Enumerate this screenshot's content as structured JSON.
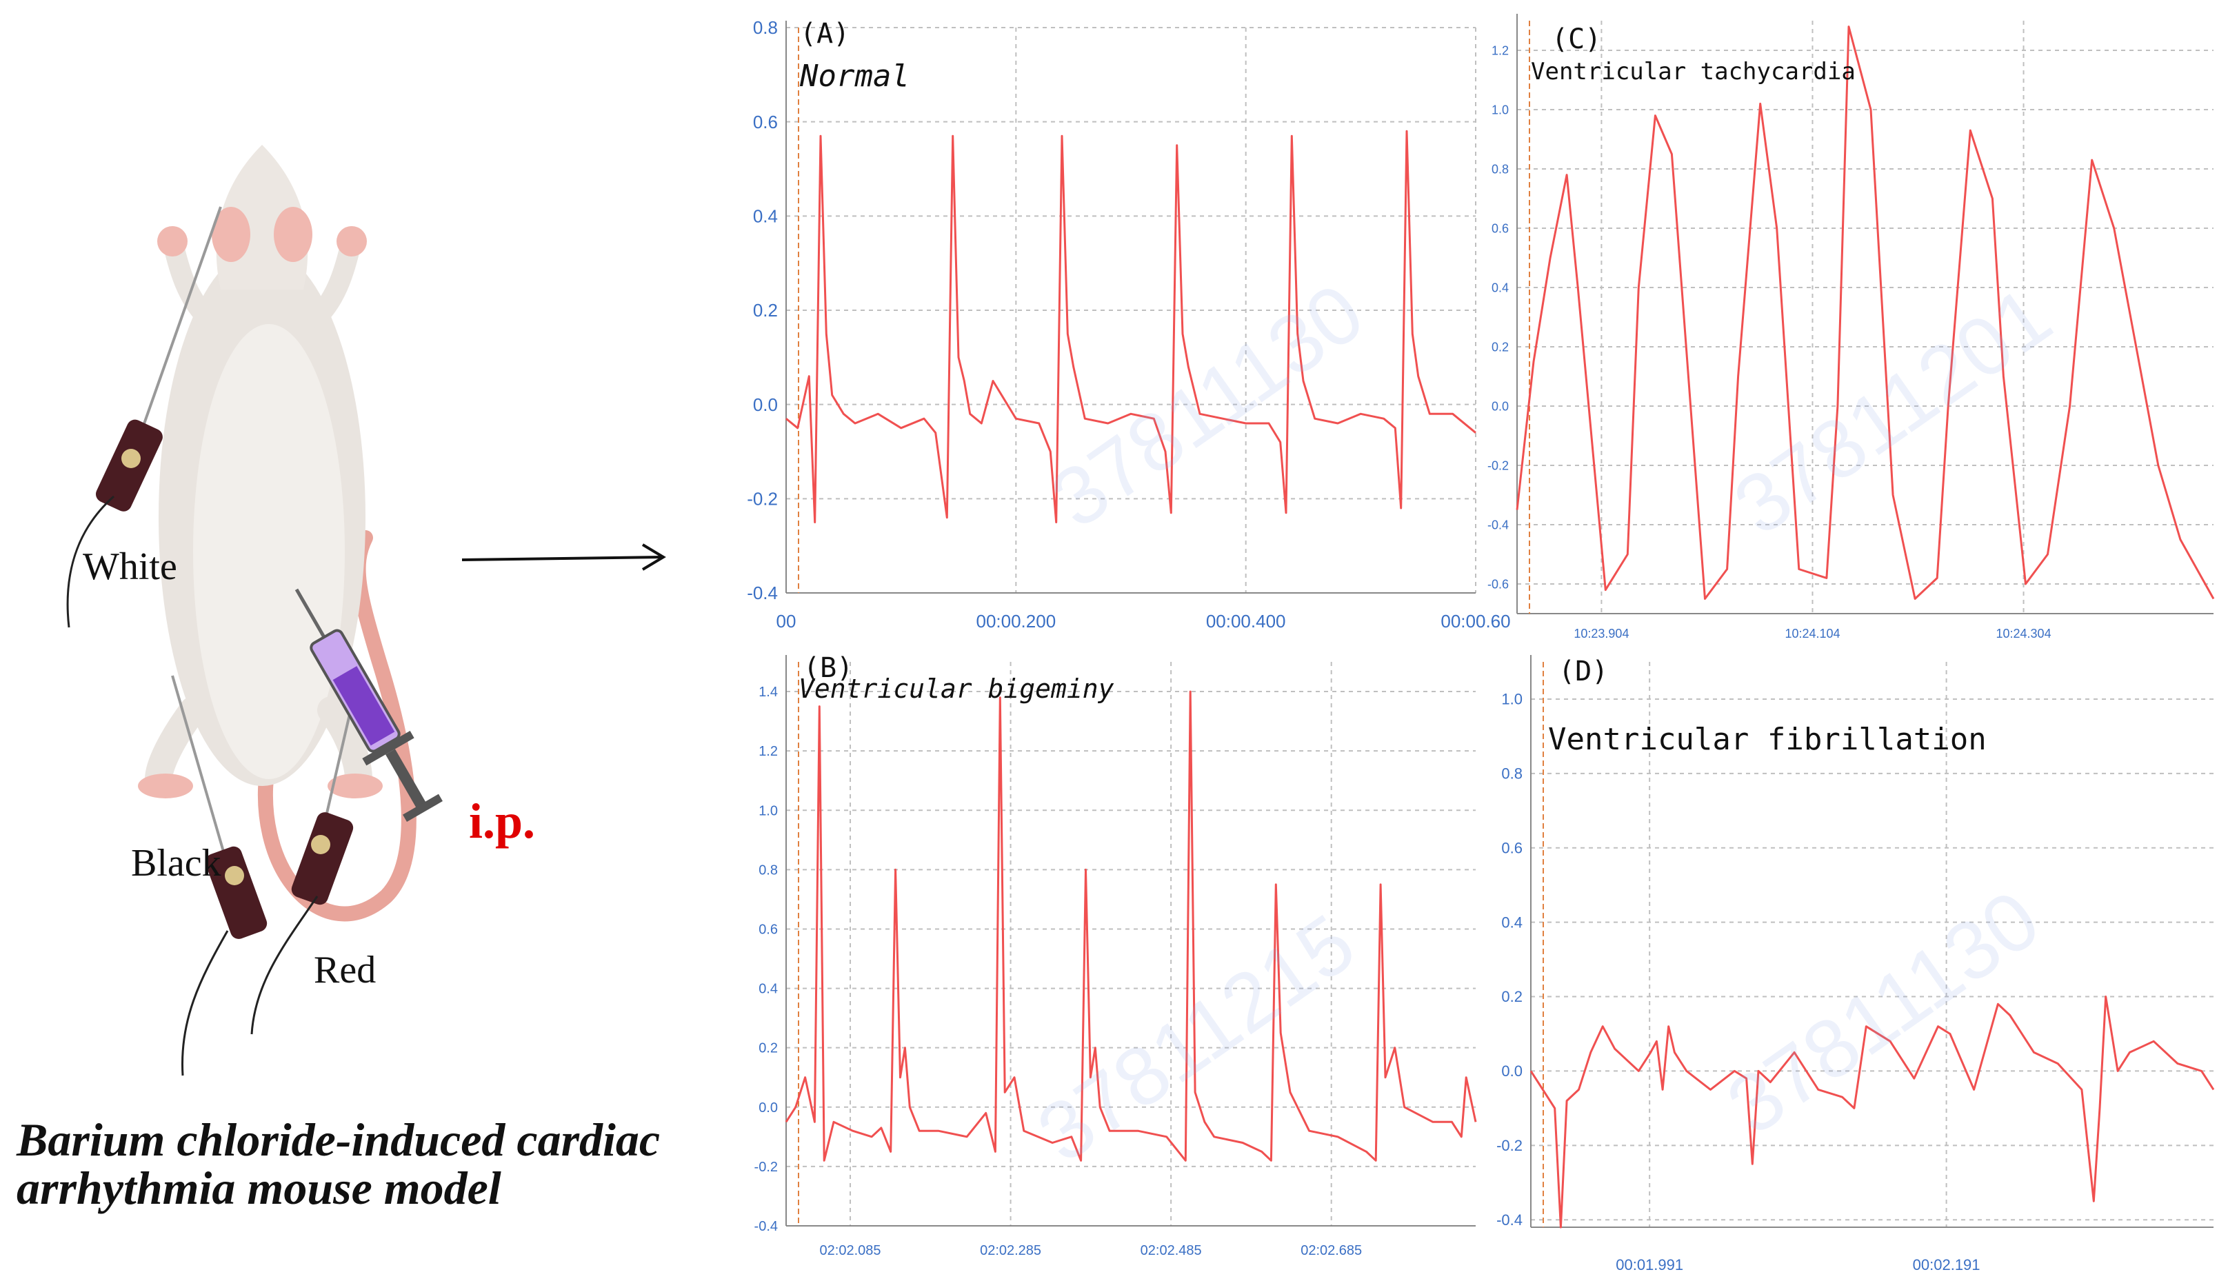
{
  "left": {
    "labels": {
      "white": "White",
      "black": "Black",
      "red": "Red",
      "ip": "i.p."
    },
    "caption": [
      "Barium  chloride-induced  cardiac",
      "arrhythmia mouse model"
    ]
  },
  "colors": {
    "trace": "#f05050",
    "axis_text": "#3a6fc4",
    "grid": "#bfbfbf",
    "marker": "#e08040",
    "ip": "#e00000"
  },
  "watermarks": [
    "37811130",
    "37811201",
    "37811215",
    "37811130"
  ],
  "chart_data": [
    {
      "panel": "(A)",
      "title": "Normal",
      "type": "line",
      "yticks": [
        "0.8",
        "0.6",
        "0.4",
        "0.2",
        "0.0",
        "-0.2",
        "-0.4"
      ],
      "ylim": [
        -0.4,
        0.8
      ],
      "xticks": [
        "00",
        "00:00.200",
        "00:00.400",
        "00:00.60"
      ],
      "xlim": [
        0,
        0.6
      ],
      "series": [
        {
          "x": [
            0,
            0.01,
            0.02,
            0.025,
            0.03,
            0.035,
            0.04,
            0.05,
            0.06,
            0.08,
            0.1,
            0.12,
            0.13,
            0.14,
            0.145,
            0.15,
            0.155,
            0.16,
            0.17,
            0.18,
            0.2,
            0.22,
            0.23,
            0.235,
            0.24,
            0.245,
            0.25,
            0.26,
            0.28,
            0.3,
            0.32,
            0.33,
            0.335,
            0.34,
            0.345,
            0.35,
            0.36,
            0.38,
            0.4,
            0.42,
            0.43,
            0.435,
            0.44,
            0.445,
            0.45,
            0.46,
            0.48,
            0.5,
            0.52,
            0.53,
            0.535,
            0.54,
            0.545,
            0.55,
            0.56,
            0.58,
            0.6
          ],
          "y": [
            -0.03,
            -0.05,
            0.06,
            -0.25,
            0.57,
            0.15,
            0.02,
            -0.02,
            -0.04,
            -0.02,
            -0.05,
            -0.03,
            -0.06,
            -0.24,
            0.57,
            0.1,
            0.05,
            -0.02,
            -0.04,
            0.05,
            -0.03,
            -0.04,
            -0.1,
            -0.25,
            0.57,
            0.15,
            0.08,
            -0.03,
            -0.04,
            -0.02,
            -0.03,
            -0.1,
            -0.23,
            0.55,
            0.15,
            0.08,
            -0.02,
            -0.03,
            -0.04,
            -0.04,
            -0.08,
            -0.23,
            0.57,
            0.15,
            0.05,
            -0.03,
            -0.04,
            -0.02,
            -0.03,
            -0.05,
            -0.22,
            0.58,
            0.15,
            0.06,
            -0.02,
            -0.02,
            -0.06
          ]
        }
      ]
    },
    {
      "panel": "(B)",
      "title": "Ventricular bigeminy",
      "type": "line",
      "yticks": [
        "1.4",
        "1.2",
        "1.0",
        "0.8",
        "0.6",
        "0.4",
        "0.2",
        "0.0",
        "-0.2",
        "-0.4"
      ],
      "ylim": [
        -0.4,
        1.5
      ],
      "xticks": [
        "02:02.085",
        "02:02.285",
        "02:02.485",
        "02:02.685"
      ],
      "xlim": [
        2.05,
        2.775
      ],
      "series": [
        {
          "x": [
            2.05,
            2.06,
            2.07,
            2.08,
            2.085,
            2.09,
            2.1,
            2.12,
            2.14,
            2.15,
            2.16,
            2.165,
            2.17,
            2.175,
            2.18,
            2.19,
            2.21,
            2.24,
            2.26,
            2.27,
            2.275,
            2.28,
            2.29,
            2.3,
            2.33,
            2.35,
            2.36,
            2.365,
            2.37,
            2.375,
            2.38,
            2.39,
            2.42,
            2.45,
            2.47,
            2.475,
            2.48,
            2.49,
            2.5,
            2.53,
            2.55,
            2.56,
            2.565,
            2.57,
            2.58,
            2.6,
            2.63,
            2.66,
            2.67,
            2.675,
            2.68,
            2.69,
            2.7,
            2.73,
            2.75,
            2.76,
            2.765,
            2.775
          ],
          "y": [
            -0.05,
            0.0,
            0.1,
            -0.05,
            1.35,
            -0.18,
            -0.05,
            -0.08,
            -0.1,
            -0.07,
            -0.15,
            0.8,
            0.1,
            0.2,
            0.0,
            -0.08,
            -0.08,
            -0.1,
            -0.02,
            -0.15,
            1.38,
            0.05,
            0.1,
            -0.08,
            -0.12,
            -0.1,
            -0.18,
            0.8,
            0.1,
            0.2,
            0.0,
            -0.08,
            -0.08,
            -0.1,
            -0.18,
            1.4,
            0.05,
            -0.05,
            -0.1,
            -0.12,
            -0.15,
            -0.18,
            0.75,
            0.25,
            0.05,
            -0.08,
            -0.1,
            -0.15,
            -0.18,
            0.75,
            0.1,
            0.2,
            0.0,
            -0.05,
            -0.05,
            -0.1,
            0.1,
            -0.05
          ]
        }
      ]
    },
    {
      "panel": "(C)",
      "title": "Ventricular tachycardia",
      "type": "line",
      "yticks": [
        "1.2",
        "1.0",
        "0.8",
        "0.6",
        "0.4",
        "0.2",
        "0.0",
        "-0.2",
        "-0.4",
        "-0.6"
      ],
      "ylim": [
        -0.7,
        1.3
      ],
      "xticks": [
        "10:23.904",
        "10:24.104",
        "10:24.304"
      ],
      "xlim": [
        23.8,
        24.43
      ],
      "series": [
        {
          "x": [
            23.8,
            23.815,
            23.83,
            23.845,
            23.855,
            23.88,
            23.9,
            23.91,
            23.925,
            23.94,
            23.97,
            23.99,
            24.0,
            24.02,
            24.035,
            24.055,
            24.08,
            24.09,
            24.1,
            24.12,
            24.14,
            24.16,
            24.18,
            24.19,
            24.21,
            24.23,
            24.24,
            24.26,
            24.28,
            24.3,
            24.32,
            24.34,
            24.36,
            24.38,
            24.4,
            24.43
          ],
          "y": [
            -0.35,
            0.15,
            0.5,
            0.78,
            0.4,
            -0.62,
            -0.5,
            0.4,
            0.98,
            0.85,
            -0.65,
            -0.55,
            0.1,
            1.02,
            0.6,
            -0.55,
            -0.58,
            0.0,
            1.28,
            1.0,
            -0.3,
            -0.65,
            -0.58,
            0.0,
            0.93,
            0.7,
            0.1,
            -0.6,
            -0.5,
            0.0,
            0.83,
            0.6,
            0.2,
            -0.2,
            -0.45,
            -0.65
          ]
        }
      ]
    },
    {
      "panel": "(D)",
      "title": "Ventricular fibrillation",
      "type": "line",
      "yticks": [
        "1.0",
        "0.8",
        "0.6",
        "0.4",
        "0.2",
        "0.0",
        "-0.2",
        "-0.4"
      ],
      "ylim": [
        -0.42,
        1.1
      ],
      "xticks": [
        "00:01.991",
        "00:02.191"
      ],
      "xlim": [
        1.8,
        2.37
      ],
      "series": [
        {
          "x": [
            1.8,
            1.81,
            1.82,
            1.825,
            1.83,
            1.84,
            1.85,
            1.86,
            1.87,
            1.88,
            1.89,
            1.9,
            1.905,
            1.91,
            1.915,
            1.92,
            1.93,
            1.95,
            1.97,
            1.98,
            1.985,
            1.99,
            2.0,
            2.02,
            2.04,
            2.06,
            2.07,
            2.08,
            2.1,
            2.12,
            2.14,
            2.15,
            2.17,
            2.19,
            2.2,
            2.22,
            2.24,
            2.26,
            2.27,
            2.275,
            2.28,
            2.29,
            2.3,
            2.32,
            2.34,
            2.36,
            2.37
          ],
          "y": [
            0.0,
            -0.05,
            -0.1,
            -0.42,
            -0.08,
            -0.05,
            0.05,
            0.12,
            0.06,
            0.03,
            0.0,
            0.05,
            0.08,
            -0.05,
            0.12,
            0.05,
            0.0,
            -0.05,
            0.0,
            -0.02,
            -0.25,
            0.0,
            -0.03,
            0.05,
            -0.05,
            -0.07,
            -0.1,
            0.12,
            0.08,
            -0.02,
            0.12,
            0.1,
            -0.05,
            0.18,
            0.15,
            0.05,
            0.02,
            -0.05,
            -0.35,
            -0.1,
            0.2,
            0.0,
            0.05,
            0.08,
            0.02,
            0.0,
            -0.05
          ]
        }
      ]
    }
  ]
}
